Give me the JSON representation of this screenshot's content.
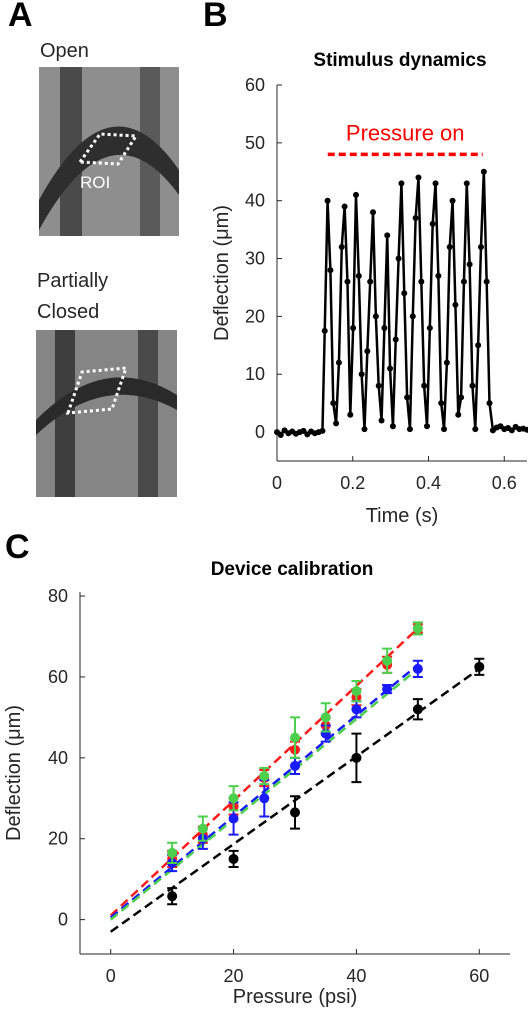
{
  "panel_labels": [
    "A",
    "B",
    "C"
  ],
  "panel_a": {
    "images": [
      {
        "caption": "Open",
        "roi_label": "ROI"
      },
      {
        "caption": "Partially Closed"
      }
    ]
  },
  "chart_data": [
    {
      "type": "line",
      "title": "Stimulus dynamics",
      "xlabel": "Time (s)",
      "ylabel": "Deflection (μm)",
      "xlim": [
        0,
        0.66
      ],
      "ylim": [
        -5,
        60
      ],
      "xticks": [
        0,
        0.2,
        0.4,
        0.6
      ],
      "yticks": [
        0,
        10,
        20,
        30,
        40,
        50,
        60
      ],
      "annotation": {
        "text": "Pressure on",
        "color": "#ff0000",
        "x": [
          0.134,
          0.543
        ],
        "y": 48
      },
      "x": [
        0,
        0.01,
        0.02,
        0.03,
        0.04,
        0.05,
        0.06,
        0.07,
        0.08,
        0.09,
        0.1,
        0.11,
        0.12,
        0.126,
        0.1335,
        0.141,
        0.1485,
        0.156,
        0.1635,
        0.171,
        0.1785,
        0.186,
        0.1935,
        0.201,
        0.2085,
        0.216,
        0.2235,
        0.231,
        0.2385,
        0.246,
        0.2535,
        0.261,
        0.2685,
        0.276,
        0.2835,
        0.291,
        0.2985,
        0.306,
        0.3135,
        0.321,
        0.3285,
        0.336,
        0.3435,
        0.351,
        0.3585,
        0.366,
        0.3735,
        0.381,
        0.3885,
        0.396,
        0.4035,
        0.411,
        0.4185,
        0.426,
        0.4335,
        0.441,
        0.4485,
        0.456,
        0.4635,
        0.471,
        0.4785,
        0.486,
        0.4935,
        0.501,
        0.5085,
        0.516,
        0.5235,
        0.531,
        0.5385,
        0.546,
        0.5535,
        0.561,
        0.57,
        0.58,
        0.59,
        0.6,
        0.61,
        0.62,
        0.63,
        0.64,
        0.65,
        0.66
      ],
      "series": [
        {
          "color": "#000000",
          "values": [
            0,
            -0.5,
            0.3,
            -0.2,
            0.1,
            -0.3,
            0,
            0.2,
            -0.4,
            0.1,
            -0.2,
            0,
            0.2,
            17.5,
            40,
            28,
            5,
            1.5,
            12,
            32,
            39,
            26,
            3,
            18,
            41,
            27,
            10,
            0.5,
            14,
            26,
            38,
            20,
            8,
            2,
            18,
            34,
            11,
            1,
            16,
            30,
            43,
            24,
            6,
            0.5,
            20,
            37,
            44,
            26,
            8,
            1,
            18,
            36,
            43,
            27,
            5,
            0.5,
            12,
            32,
            40,
            22,
            3,
            6,
            26,
            43,
            29,
            8,
            0.5,
            15,
            32,
            45,
            26,
            5,
            0.3,
            0.8,
            1,
            0.5,
            0.7,
            0.3,
            0.9,
            0.5,
            0.6,
            0.4
          ]
        }
      ]
    },
    {
      "type": "scatter",
      "title": "Device calibration",
      "xlabel": "Pressure (psi)",
      "ylabel": "Deflection (μm)",
      "xlim": [
        -5,
        65
      ],
      "ylim": [
        -8.5,
        81
      ],
      "xticks": [
        0,
        20,
        40,
        60
      ],
      "yticks": [
        0,
        20,
        40,
        60,
        80
      ],
      "series": [
        {
          "color": "#ff1a1a",
          "x": [
            10,
            15,
            20,
            25,
            30,
            35,
            40,
            45,
            50
          ],
          "values": [
            15,
            21,
            28,
            35,
            42,
            48,
            55,
            63,
            72
          ],
          "errors": [
            2,
            2,
            2,
            2,
            2,
            2,
            2,
            2,
            1
          ],
          "fit": {
            "x": [
              0,
              50
            ],
            "y": [
              1,
              72
            ]
          }
        },
        {
          "color": "#1a1aff",
          "x": [
            10,
            15,
            20,
            25,
            30,
            35,
            40,
            45,
            50
          ],
          "values": [
            14,
            20,
            25,
            30,
            38,
            46,
            52,
            57,
            62
          ],
          "errors": [
            2,
            2.5,
            4,
            4.5,
            2,
            2,
            2,
            1,
            2
          ],
          "fit": {
            "x": [
              0,
              50
            ],
            "y": [
              0.5,
              63
            ]
          }
        },
        {
          "color": "#4ccf4c",
          "x": [
            10,
            15,
            20,
            25,
            30,
            35,
            40,
            45,
            50
          ],
          "values": [
            16.5,
            22.5,
            30,
            35.5,
            45,
            50,
            56.5,
            64,
            72
          ],
          "errors": [
            2.5,
            3,
            3,
            2,
            5,
            3.5,
            2.5,
            3,
            1.5
          ],
          "fit": {
            "x": [
              0,
              50
            ],
            "y": [
              0,
              62
            ]
          }
        },
        {
          "color": "#000000",
          "x": [
            10,
            20,
            30,
            40,
            50,
            60
          ],
          "values": [
            5.8,
            15,
            26.5,
            40,
            52,
            62.5
          ],
          "errors": [
            2,
            2,
            4,
            6,
            2.5,
            2
          ],
          "fit": {
            "x": [
              0,
              60
            ],
            "y": [
              -3,
              62
            ]
          }
        }
      ]
    }
  ]
}
